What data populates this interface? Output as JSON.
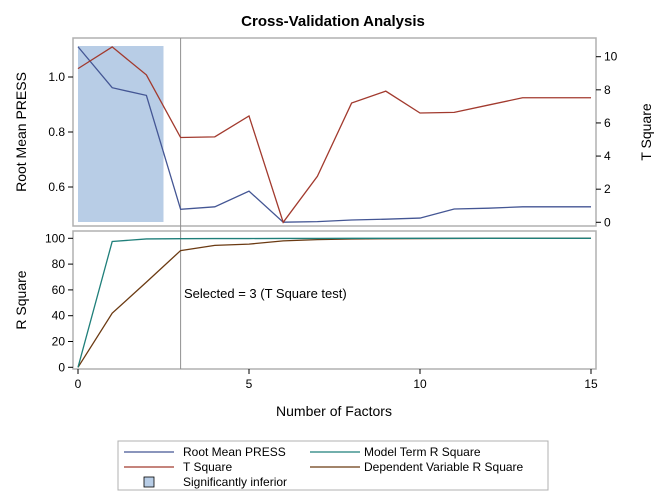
{
  "chart_data": {
    "title": "Cross-Validation Analysis",
    "xlabel": "Number of Factors",
    "x_ticks": [
      "0",
      "5",
      "10",
      "15"
    ],
    "xlim": [
      0,
      15
    ],
    "panels": [
      {
        "type": "line",
        "ylabel_left": "Root Mean PRESS",
        "ylabel_right": "T Square",
        "left_ticks": [
          "0.6",
          "0.8",
          "1.0"
        ],
        "right_ticks": [
          "0",
          "2",
          "4",
          "6",
          "8",
          "10"
        ],
        "series": [
          {
            "name": "Root Mean PRESS",
            "axis": "left",
            "color": "#445694",
            "x": [
              0,
              1,
              2,
              3,
              4,
              5,
              6,
              7,
              8,
              9,
              10,
              11,
              12,
              13,
              14,
              15
            ],
            "y": [
              1.11,
              0.961,
              0.933,
              0.519,
              0.528,
              0.585,
              0.472,
              0.474,
              0.48,
              0.483,
              0.487,
              0.52,
              0.523,
              0.528,
              0.528,
              0.528
            ]
          },
          {
            "name": "T Square",
            "axis": "right",
            "color": "#A23A2E",
            "x": [
              0,
              1,
              2,
              3,
              4,
              5,
              6,
              7,
              8,
              9,
              10,
              11,
              12,
              13,
              14,
              15
            ],
            "y": [
              9.28,
              10.59,
              8.9,
              5.12,
              5.16,
              6.42,
              0.0,
              2.78,
              7.2,
              7.92,
              6.6,
              6.64,
              7.08,
              7.52,
              7.52,
              7.52
            ]
          }
        ],
        "shaded_region": {
          "name": "Significantly inferior",
          "x": [
            0,
            2.5
          ],
          "color": "#B8CDE6"
        }
      },
      {
        "type": "line",
        "ylabel_left": "R Square",
        "left_ticks": [
          "0",
          "20",
          "40",
          "60",
          "80",
          "100"
        ],
        "ylim": [
          0,
          100
        ],
        "series": [
          {
            "name": "Model Term R Square",
            "color": "#1F7F7A",
            "x": [
              0,
              1,
              2,
              3,
              4,
              5,
              6,
              7,
              8,
              9,
              10,
              11,
              12,
              13,
              14,
              15
            ],
            "y": [
              0,
              97.5,
              99.5,
              99.7,
              99.8,
              99.8,
              99.9,
              99.9,
              100,
              100,
              100,
              100,
              100,
              100,
              100,
              100
            ]
          },
          {
            "name": "Dependent Variable R Square",
            "color": "#6B3A12",
            "x": [
              0,
              1,
              2,
              3,
              4,
              5,
              6,
              7,
              8,
              9,
              10,
              11,
              12,
              13,
              14,
              15
            ],
            "y": [
              0,
              42,
              66,
              90.5,
              94.5,
              95.5,
              98,
              99,
              99.5,
              99.7,
              99.8,
              99.9,
              100,
              100,
              100,
              100
            ]
          }
        ]
      }
    ],
    "selected_line": {
      "x": 3,
      "label": "Selected = 3 (T Square test)"
    },
    "legend": {
      "placement": "bottom",
      "items": [
        {
          "label": "Root Mean PRESS",
          "kind": "line",
          "color": "#445694"
        },
        {
          "label": "Model Term R Square",
          "kind": "line",
          "color": "#1F7F7A"
        },
        {
          "label": "T Square",
          "kind": "line",
          "color": "#A23A2E"
        },
        {
          "label": "Dependent Variable R Square",
          "kind": "line",
          "color": "#6B3A12"
        },
        {
          "label": "Significantly inferior",
          "kind": "box",
          "color": "#B8CDE6"
        }
      ]
    }
  }
}
